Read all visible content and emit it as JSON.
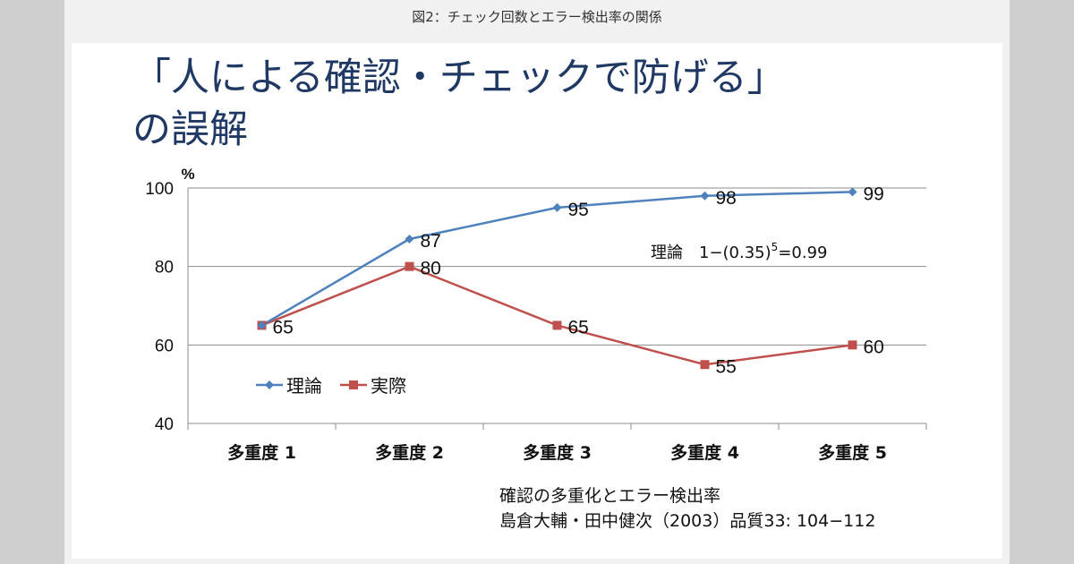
{
  "caption": "図2：チェック回数とエラー検出率の関係",
  "slide": {
    "title_line1": "「人による確認・チェックで防げる」",
    "title_line2": "の誤解",
    "source_line1": "確認の多重化とエラー検出率",
    "source_line2": "島倉大輔・田中健次（2003）品質33: 104−112"
  },
  "chart_data": {
    "type": "line",
    "title": "「人による確認・チェックで防げる」の誤解",
    "ylabel": "%",
    "xlabel": "",
    "categories": [
      "多重度 1",
      "多重度 2",
      "多重度 3",
      "多重度 4",
      "多重度 5"
    ],
    "series": [
      {
        "name": "理論",
        "values": [
          65,
          87,
          95,
          98,
          99
        ],
        "color": "#4f81bd",
        "marker": "diamond"
      },
      {
        "name": "実際",
        "values": [
          65,
          80,
          65,
          55,
          60
        ],
        "color": "#c0504d",
        "marker": "square"
      }
    ],
    "data_labels": {
      "理論": [
        "",
        "87",
        "95",
        "98",
        "99"
      ],
      "実際": [
        "65",
        "80",
        "65",
        "55",
        "60"
      ]
    },
    "ylim": [
      40,
      100
    ],
    "yticks": [
      "40",
      "60",
      "80",
      "100"
    ],
    "grid": true,
    "legend": "left-middle",
    "annotation_prefix": "理論　1−(0.35)",
    "annotation_sup": "5",
    "annotation_suffix": "=0.99"
  }
}
